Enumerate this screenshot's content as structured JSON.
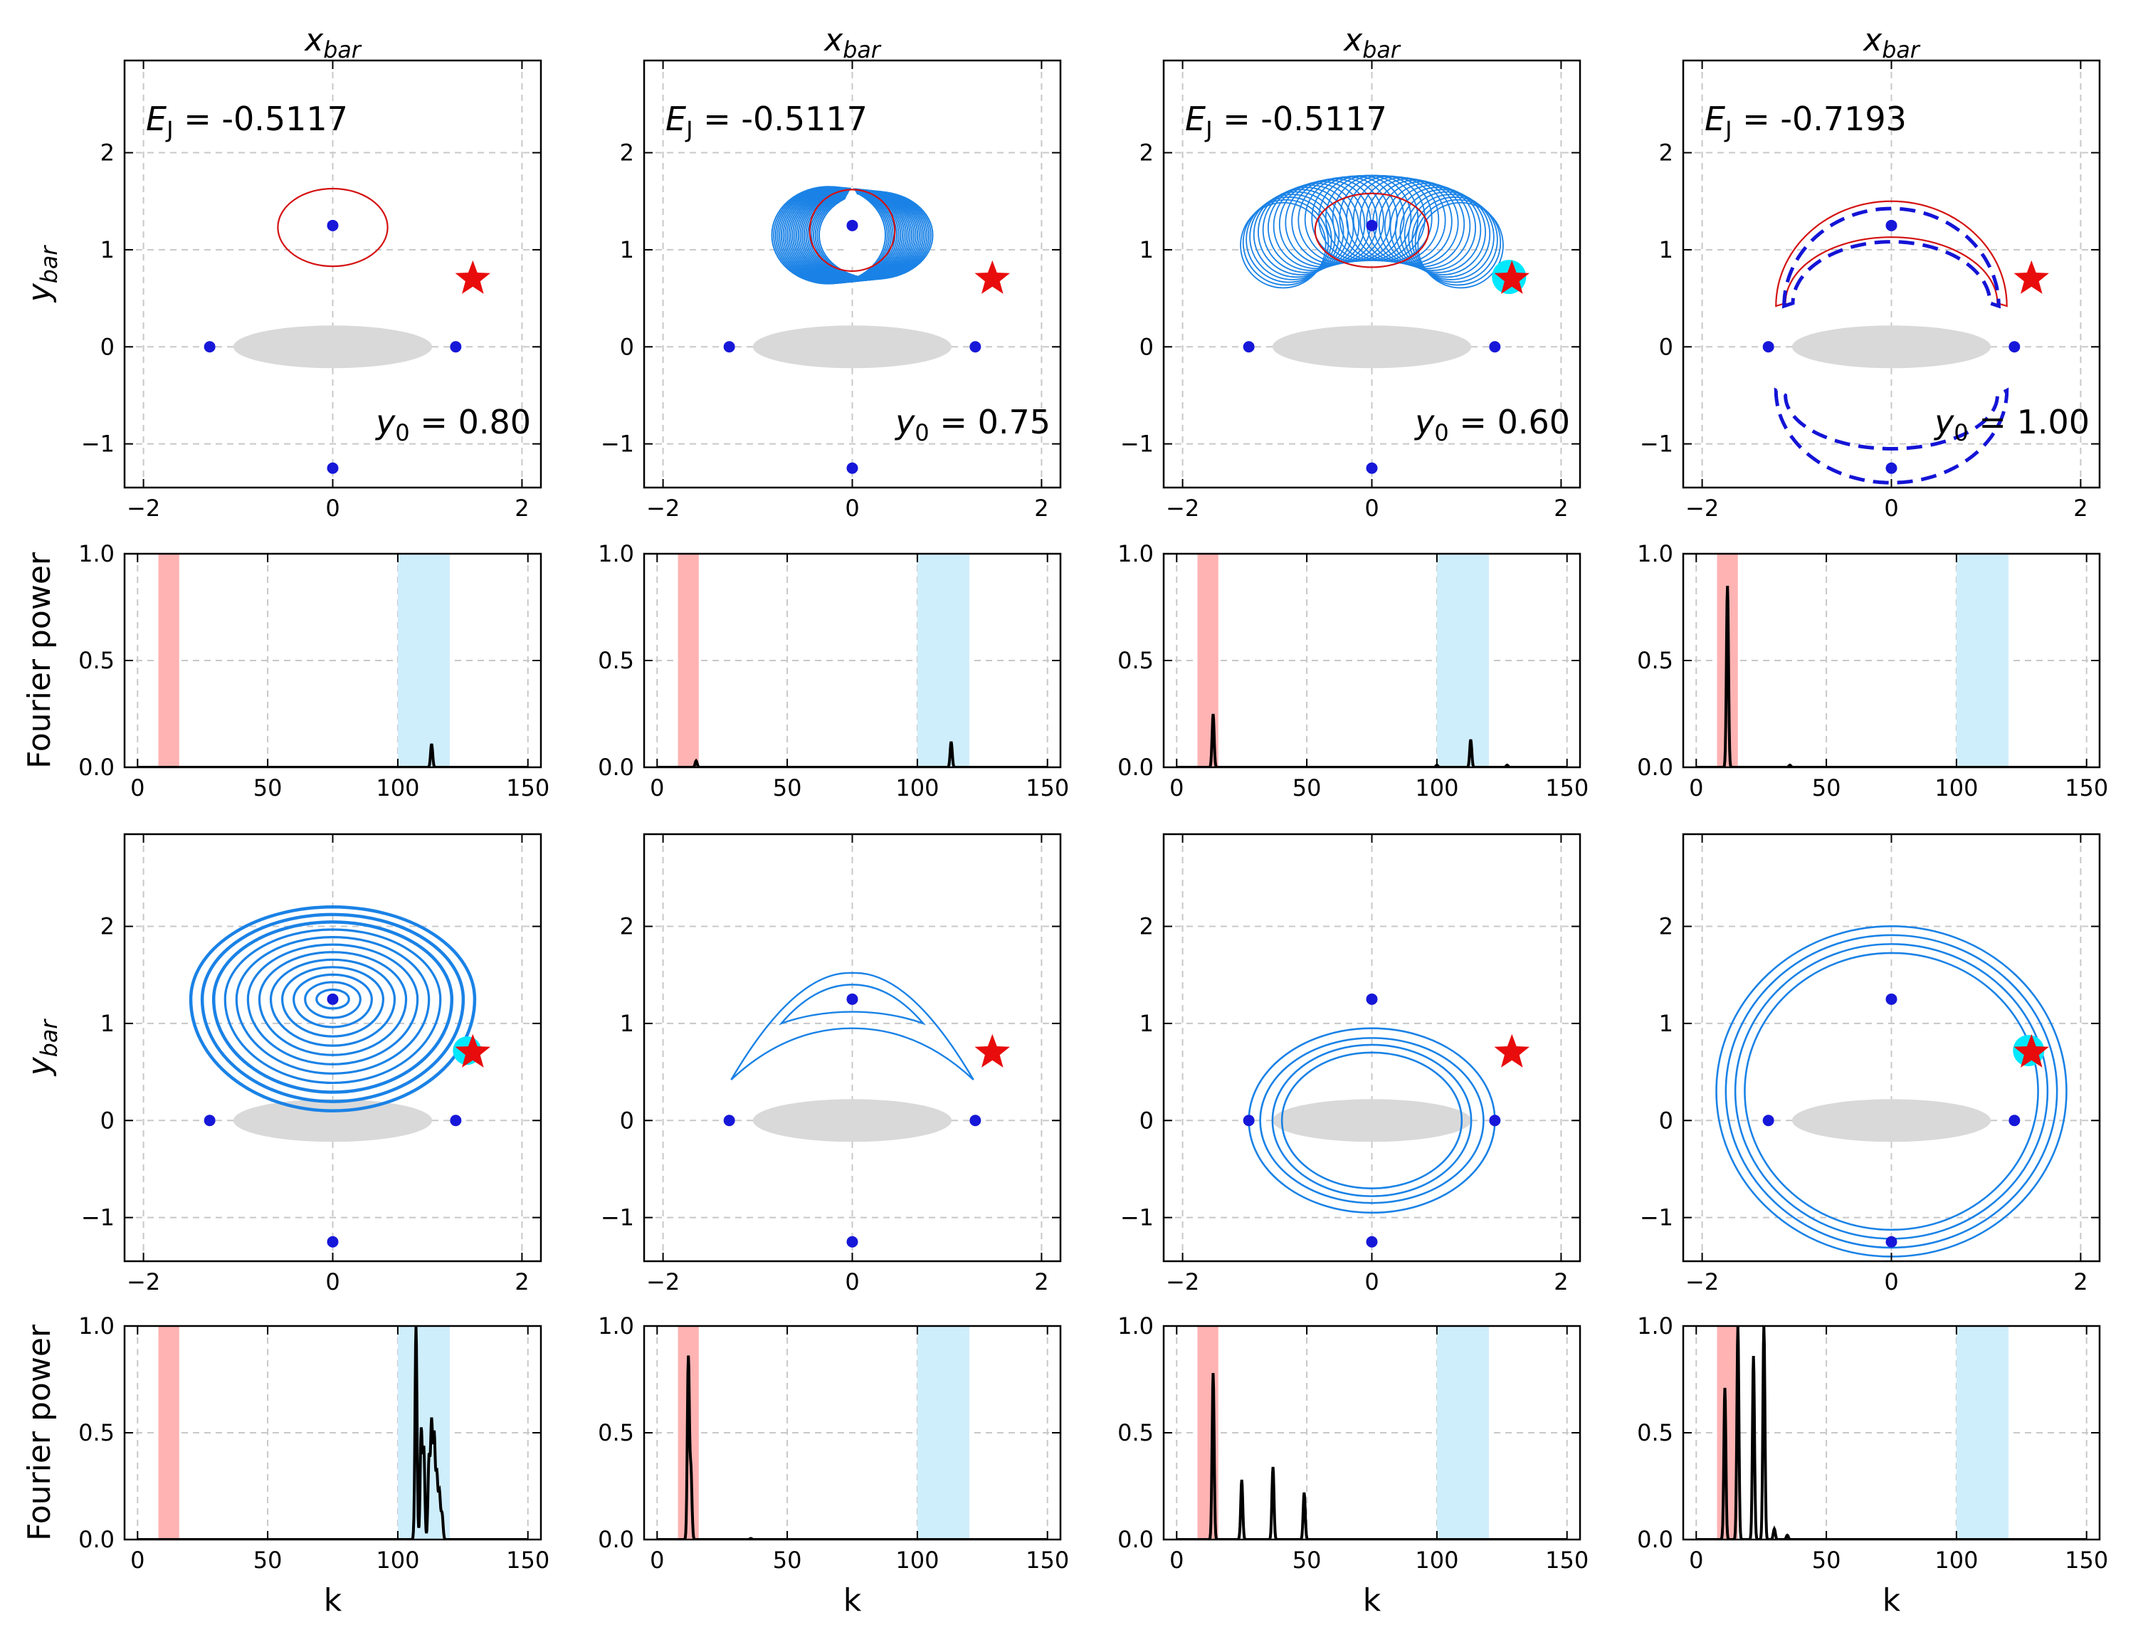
{
  "figure": {
    "column_title": "x_bar",
    "row_ylabel_orbit": "y_bar",
    "row_ylabel_fourier": "Fourier power",
    "bottom_xlabel": "k"
  },
  "colors": {
    "orbit": "#1a82e6",
    "initial_orbit": "#d41111",
    "dashed_orbit": "#1414d6",
    "lagrange_point": "#1717d9",
    "star": "#e80c0c",
    "bar_ellipse": "#d9d9d9",
    "red_band": "#ffb3b3",
    "blue_band": "#cfeefc",
    "spectrum": "#000000",
    "highlight": "#00e8ff"
  },
  "chart_data": [
    {
      "type": "line",
      "panel": "orbit-row1-col1",
      "title": "x_bar",
      "ylabel": "y_bar",
      "xlim": [
        -2.2,
        2.2
      ],
      "ylim": [
        -1.45,
        2.95
      ],
      "xticks": [
        "−2",
        "0",
        "2"
      ],
      "yticks": [
        "−1",
        "0",
        "1",
        "2"
      ],
      "annotation_EJ": "E_J = -0.5117",
      "annotation_y0": "y_0 = 0.80",
      "lagrange_points": [
        [
          0,
          1.25
        ],
        [
          -1.3,
          0
        ],
        [
          1.3,
          0
        ],
        [
          0,
          -1.25
        ]
      ],
      "star": [
        1.48,
        0.7
      ],
      "orbits": [
        {
          "kind": "ellipse",
          "cx": 0,
          "cy": 1.23,
          "rx": 0.58,
          "ry": 0.4,
          "style": "red"
        }
      ]
    },
    {
      "type": "line",
      "panel": "orbit-row1-col2",
      "title": "x_bar",
      "xlim": [
        -2.2,
        2.2
      ],
      "ylim": [
        -1.45,
        2.95
      ],
      "xticks": [
        "−2",
        "0",
        "2"
      ],
      "yticks": [
        "−1",
        "0",
        "1",
        "2"
      ],
      "annotation_EJ": "E_J = -0.5117",
      "annotation_y0": "y_0 = 0.75",
      "lagrange_points": [
        [
          0,
          1.25
        ],
        [
          -1.3,
          0
        ],
        [
          1.3,
          0
        ],
        [
          0,
          -1.25
        ]
      ],
      "star": [
        1.48,
        0.7
      ],
      "orbits": [
        {
          "kind": "blob",
          "cx": 0,
          "cy": 1.15,
          "rx": 0.85,
          "ry": 0.5,
          "style": "blue-filled"
        },
        {
          "kind": "ellipse",
          "cx": 0,
          "cy": 1.2,
          "rx": 0.45,
          "ry": 0.42,
          "style": "red"
        }
      ]
    },
    {
      "type": "line",
      "panel": "orbit-row1-col3",
      "title": "x_bar",
      "xlim": [
        -2.2,
        2.2
      ],
      "ylim": [
        -1.45,
        2.95
      ],
      "xticks": [
        "−2",
        "0",
        "2"
      ],
      "yticks": [
        "−1",
        "0",
        "1",
        "2"
      ],
      "annotation_EJ": "E_J = -0.5117",
      "annotation_y0": "y_0 = 0.60",
      "lagrange_points": [
        [
          0,
          1.25
        ],
        [
          -1.3,
          0
        ],
        [
          1.3,
          0
        ],
        [
          0,
          -1.25
        ]
      ],
      "star": [
        1.48,
        0.7
      ],
      "orbits": [
        {
          "kind": "epicycles",
          "cx": 0,
          "cy": 0.95,
          "R": 0.95,
          "r": 0.45,
          "arc_deg": [
            20,
            160
          ],
          "style": "blue"
        },
        {
          "kind": "ellipse",
          "cx": 0,
          "cy": 1.2,
          "rx": 0.6,
          "ry": 0.38,
          "style": "red"
        }
      ]
    },
    {
      "type": "line",
      "panel": "orbit-row1-col4",
      "title": "x_bar",
      "xlim": [
        -2.2,
        2.2
      ],
      "ylim": [
        -1.45,
        2.95
      ],
      "xticks": [
        "−2",
        "0",
        "2"
      ],
      "yticks": [
        "−1",
        "0",
        "1",
        "2"
      ],
      "annotation_EJ": "E_J = -0.7193",
      "annotation_y0": "y_0 = 1.00",
      "lagrange_points": [
        [
          0,
          1.25
        ],
        [
          -1.3,
          0
        ],
        [
          1.3,
          0
        ],
        [
          0,
          -1.25
        ]
      ],
      "star": [
        1.48,
        0.7
      ],
      "orbits": [
        {
          "kind": "crescent-top",
          "style": "red"
        },
        {
          "kind": "crescent-top",
          "style": "dashed"
        },
        {
          "kind": "crescent-bottom",
          "style": "dashed"
        }
      ]
    },
    {
      "type": "line",
      "panel": "fourier-row1-col1",
      "ylabel": "Fourier power",
      "xlim": [
        -5,
        155
      ],
      "ylim": [
        0,
        1
      ],
      "xticks": [
        "0",
        "50",
        "100",
        "150"
      ],
      "yticks": [
        "0.0",
        "0.5",
        "1.0"
      ],
      "bands": [
        [
          8,
          16,
          "red"
        ],
        [
          100,
          120,
          "blue"
        ]
      ],
      "peaks": [
        [
          113,
          0.11
        ]
      ]
    },
    {
      "type": "line",
      "panel": "fourier-row1-col2",
      "xlim": [
        -5,
        155
      ],
      "ylim": [
        0,
        1
      ],
      "xticks": [
        "0",
        "50",
        "100",
        "150"
      ],
      "yticks": [
        "0.0",
        "0.5",
        "1.0"
      ],
      "bands": [
        [
          8,
          16,
          "red"
        ],
        [
          100,
          120,
          "blue"
        ]
      ],
      "peaks": [
        [
          15,
          0.03
        ],
        [
          113,
          0.12
        ]
      ]
    },
    {
      "type": "line",
      "panel": "fourier-row1-col3",
      "xlim": [
        -5,
        155
      ],
      "ylim": [
        0,
        1
      ],
      "xticks": [
        "0",
        "50",
        "100",
        "150"
      ],
      "yticks": [
        "0.0",
        "0.5",
        "1.0"
      ],
      "bands": [
        [
          8,
          16,
          "red"
        ],
        [
          100,
          120,
          "blue"
        ]
      ],
      "peaks": [
        [
          14,
          0.25
        ],
        [
          113,
          0.13
        ],
        [
          100,
          0.01
        ],
        [
          127,
          0.01
        ]
      ]
    },
    {
      "type": "line",
      "panel": "fourier-row1-col4",
      "xlim": [
        -5,
        155
      ],
      "ylim": [
        0,
        1
      ],
      "xticks": [
        "0",
        "50",
        "100",
        "150"
      ],
      "yticks": [
        "0.0",
        "0.5",
        "1.0"
      ],
      "bands": [
        [
          8,
          16,
          "red"
        ],
        [
          100,
          120,
          "blue"
        ]
      ],
      "peaks": [
        [
          12,
          0.85
        ],
        [
          36,
          0.01
        ]
      ]
    },
    {
      "type": "line",
      "panel": "orbit-row2-col1",
      "ylabel": "y_bar",
      "xlim": [
        -2.2,
        2.2
      ],
      "ylim": [
        -1.45,
        2.95
      ],
      "xticks": [
        "−2",
        "0",
        "2"
      ],
      "yticks": [
        "−1",
        "0",
        "1",
        "2"
      ],
      "lagrange_points": [
        [
          0,
          1.25
        ],
        [
          -1.3,
          0
        ],
        [
          1.3,
          0
        ],
        [
          0,
          -1.25
        ]
      ],
      "star": [
        1.48,
        0.7
      ],
      "orbits": [
        {
          "kind": "nested-loops",
          "cx": 0,
          "cy": 1.25,
          "count": 12,
          "style": "blue"
        }
      ]
    },
    {
      "type": "line",
      "panel": "orbit-row2-col2",
      "xlim": [
        -2.2,
        2.2
      ],
      "ylim": [
        -1.45,
        2.95
      ],
      "xticks": [
        "−2",
        "0",
        "2"
      ],
      "yticks": [
        "−1",
        "0",
        "1",
        "2"
      ],
      "lagrange_points": [
        [
          0,
          1.25
        ],
        [
          -1.3,
          0
        ],
        [
          1.3,
          0
        ],
        [
          0,
          -1.25
        ]
      ],
      "star": [
        1.48,
        0.7
      ],
      "orbits": [
        {
          "kind": "crescent-large",
          "style": "blue"
        },
        {
          "kind": "crescent-small",
          "style": "blue"
        }
      ]
    },
    {
      "type": "line",
      "panel": "orbit-row2-col3",
      "xlim": [
        -2.2,
        2.2
      ],
      "ylim": [
        -1.45,
        2.95
      ],
      "xticks": [
        "−2",
        "0",
        "2"
      ],
      "yticks": [
        "−1",
        "0",
        "1",
        "2"
      ],
      "lagrange_points": [
        [
          0,
          1.25
        ],
        [
          -1.3,
          0
        ],
        [
          1.3,
          0
        ],
        [
          0,
          -1.25
        ]
      ],
      "star": [
        1.48,
        0.7
      ],
      "orbits": [
        {
          "kind": "ovals",
          "radii": [
            [
              1.3,
              0.95
            ],
            [
              1.18,
              0.85
            ],
            [
              1.05,
              0.78
            ],
            [
              0.95,
              0.7
            ]
          ],
          "style": "blue"
        }
      ]
    },
    {
      "type": "line",
      "panel": "orbit-row2-col4",
      "xlim": [
        -2.2,
        2.2
      ],
      "ylim": [
        -1.45,
        2.95
      ],
      "xticks": [
        "−2",
        "0",
        "2"
      ],
      "yticks": [
        "−1",
        "0",
        "1",
        "2"
      ],
      "lagrange_points": [
        [
          0,
          1.25
        ],
        [
          -1.3,
          0
        ],
        [
          1.3,
          0
        ],
        [
          0,
          -1.25
        ]
      ],
      "star": [
        1.48,
        0.7
      ],
      "orbits": [
        {
          "kind": "circles",
          "cx": 0,
          "cy": 0.3,
          "radii": [
            1.85,
            1.75,
            1.65,
            1.55
          ],
          "style": "blue"
        }
      ]
    },
    {
      "type": "line",
      "panel": "fourier-row2-col1",
      "ylabel": "Fourier power",
      "xlabel": "k",
      "xlim": [
        -5,
        155
      ],
      "ylim": [
        0,
        1
      ],
      "xticks": [
        "0",
        "50",
        "100",
        "150"
      ],
      "yticks": [
        "0.0",
        "0.5",
        "1.0"
      ],
      "bands": [
        [
          8,
          16,
          "red"
        ],
        [
          100,
          120,
          "blue"
        ]
      ],
      "peaks": [
        [
          107,
          1.0
        ],
        [
          109,
          0.51
        ],
        [
          110,
          0.42
        ],
        [
          112,
          0.38
        ],
        [
          113,
          0.54
        ],
        [
          114,
          0.48
        ],
        [
          115,
          0.3
        ],
        [
          116,
          0.22
        ],
        [
          117,
          0.12
        ]
      ]
    },
    {
      "type": "line",
      "panel": "fourier-row2-col2",
      "xlabel": "k",
      "xlim": [
        -5,
        155
      ],
      "ylim": [
        0,
        1
      ],
      "xticks": [
        "0",
        "50",
        "100",
        "150"
      ],
      "yticks": [
        "0.0",
        "0.5",
        "1.0"
      ],
      "bands": [
        [
          8,
          16,
          "red"
        ],
        [
          100,
          120,
          "blue"
        ]
      ],
      "peaks": [
        [
          12,
          0.85
        ],
        [
          13,
          0.32
        ],
        [
          36,
          0.005
        ]
      ]
    },
    {
      "type": "line",
      "panel": "fourier-row2-col3",
      "xlabel": "k",
      "xlim": [
        -5,
        155
      ],
      "ylim": [
        0,
        1
      ],
      "xticks": [
        "0",
        "50",
        "100",
        "150"
      ],
      "yticks": [
        "0.0",
        "0.5",
        "1.0"
      ],
      "bands": [
        [
          8,
          16,
          "red"
        ],
        [
          100,
          120,
          "blue"
        ]
      ],
      "peaks": [
        [
          14,
          0.78
        ],
        [
          25,
          0.28
        ],
        [
          37,
          0.34
        ],
        [
          49,
          0.22
        ]
      ]
    },
    {
      "type": "line",
      "panel": "fourier-row2-col4",
      "xlabel": "k",
      "xlim": [
        -5,
        155
      ],
      "ylim": [
        0,
        1
      ],
      "xticks": [
        "0",
        "50",
        "100",
        "150"
      ],
      "yticks": [
        "0.0",
        "0.5",
        "1.0"
      ],
      "bands": [
        [
          8,
          16,
          "red"
        ],
        [
          100,
          120,
          "blue"
        ]
      ],
      "peaks": [
        [
          11,
          0.71
        ],
        [
          16,
          1.0
        ],
        [
          22,
          0.86
        ],
        [
          26,
          1.0
        ],
        [
          30,
          0.05
        ],
        [
          35,
          0.02
        ]
      ]
    }
  ]
}
